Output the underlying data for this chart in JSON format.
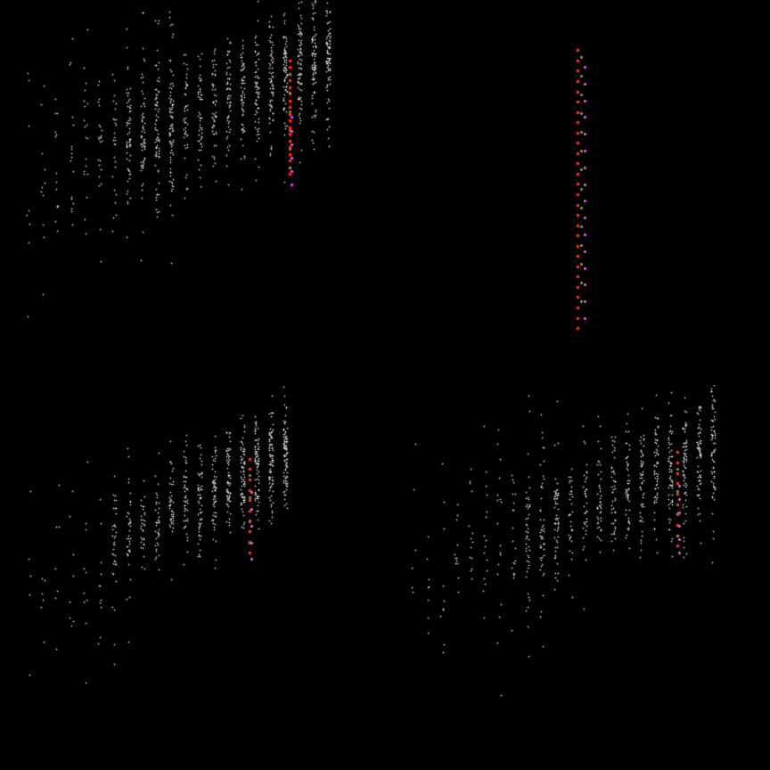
{
  "background_color": "#000000",
  "figure_size": [
    8.64,
    8.64
  ],
  "dpi": 100,
  "gray_color": "#c8c8c8",
  "colors_red": "#ff2200",
  "colors_green": "#668833",
  "colors_pink": "#dd44dd",
  "point_size_gray": 2,
  "point_size_colored": 7,
  "alpha_gray": 0.75
}
